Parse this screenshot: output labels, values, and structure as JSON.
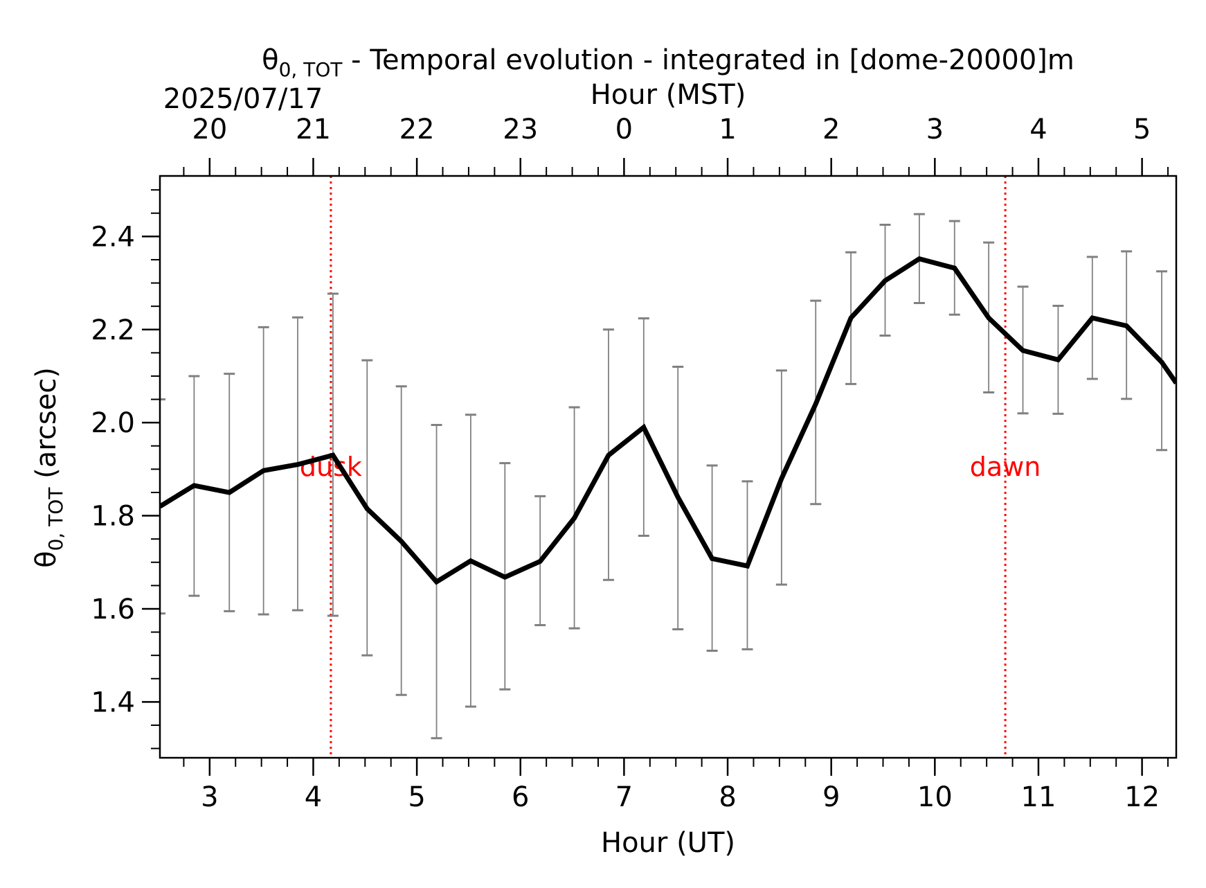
{
  "chart_data": {
    "type": "line",
    "title_main": "θ",
    "title_sub": "0, TOT",
    "title_rest": " - Temporal evolution - integrated in [dome-20000]m",
    "date_label": "2025/07/17",
    "xlabel_bottom": "Hour (UT)",
    "xlabel_top": "Hour (MST)",
    "ylabel_main": "θ",
    "ylabel_sub": "0, TOT",
    "ylabel_rest": " (arcsec)",
    "xlim": [
      2.52,
      12.33
    ],
    "ylim": [
      1.28,
      2.53
    ],
    "bottom_ticks": [
      {
        "value": 3,
        "label": "3"
      },
      {
        "value": 4,
        "label": "4"
      },
      {
        "value": 5,
        "label": "5"
      },
      {
        "value": 6,
        "label": "6"
      },
      {
        "value": 7,
        "label": "7"
      },
      {
        "value": 8,
        "label": "8"
      },
      {
        "value": 9,
        "label": "9"
      },
      {
        "value": 10,
        "label": "10"
      },
      {
        "value": 11,
        "label": "11"
      },
      {
        "value": 12,
        "label": "12"
      }
    ],
    "top_ticks": [
      {
        "value": 3,
        "label": "20"
      },
      {
        "value": 4,
        "label": "21"
      },
      {
        "value": 5,
        "label": "22"
      },
      {
        "value": 6,
        "label": "23"
      },
      {
        "value": 7,
        "label": "0"
      },
      {
        "value": 8,
        "label": "1"
      },
      {
        "value": 9,
        "label": "2"
      },
      {
        "value": 10,
        "label": "3"
      },
      {
        "value": 11,
        "label": "4"
      },
      {
        "value": 12,
        "label": "5"
      }
    ],
    "y_ticks": [
      {
        "value": 1.4,
        "label": "1.4"
      },
      {
        "value": 1.6,
        "label": "1.6"
      },
      {
        "value": 1.8,
        "label": "1.8"
      },
      {
        "value": 2.0,
        "label": "2.0"
      },
      {
        "value": 2.2,
        "label": "2.2"
      },
      {
        "value": 2.4,
        "label": "2.4"
      }
    ],
    "x_minor_step": 0.25,
    "y_minor_step": 0.05,
    "line_color": "#000000",
    "errorbar_color": "#808080",
    "marker_color": "#ff0000",
    "series": [
      {
        "x": [
          2.52,
          2.85,
          3.19,
          3.52,
          3.85,
          4.19,
          4.52,
          4.85,
          5.19,
          5.52,
          5.85,
          6.19,
          6.52,
          6.85,
          7.19,
          7.52,
          7.85,
          8.19,
          8.52,
          8.85,
          9.19,
          9.52,
          9.85,
          10.19,
          10.52,
          10.85,
          11.19,
          11.52,
          11.85,
          12.19,
          12.33
        ],
        "y": [
          1.82,
          1.865,
          1.85,
          1.897,
          1.91,
          1.93,
          1.815,
          1.745,
          1.658,
          1.703,
          1.668,
          1.702,
          1.795,
          1.93,
          1.99,
          1.84,
          1.708,
          1.692,
          1.88,
          2.04,
          2.225,
          2.305,
          2.352,
          2.332,
          2.225,
          2.155,
          2.135,
          2.225,
          2.208,
          2.13,
          2.085
        ],
        "lower": [
          1.59,
          1.628,
          1.595,
          1.588,
          1.597,
          1.585,
          1.5,
          1.415,
          1.322,
          1.39,
          1.427,
          1.565,
          1.558,
          1.662,
          1.757,
          1.556,
          1.51,
          1.513,
          1.652,
          1.825,
          2.083,
          2.187,
          2.257,
          2.232,
          2.065,
          2.02,
          2.019,
          2.094,
          2.051,
          1.941,
          null
        ],
        "upper": [
          2.05,
          2.1,
          2.105,
          2.205,
          2.226,
          2.277,
          2.134,
          2.078,
          1.995,
          2.017,
          1.913,
          1.842,
          2.033,
          2.2,
          2.224,
          2.12,
          1.908,
          1.874,
          2.112,
          2.262,
          2.366,
          2.425,
          2.448,
          2.433,
          2.387,
          2.292,
          2.251,
          2.356,
          2.368,
          2.325,
          null
        ]
      }
    ],
    "markers": [
      {
        "x": 4.17,
        "label": "dusk"
      },
      {
        "x": 10.68,
        "label": "dawn"
      }
    ]
  }
}
